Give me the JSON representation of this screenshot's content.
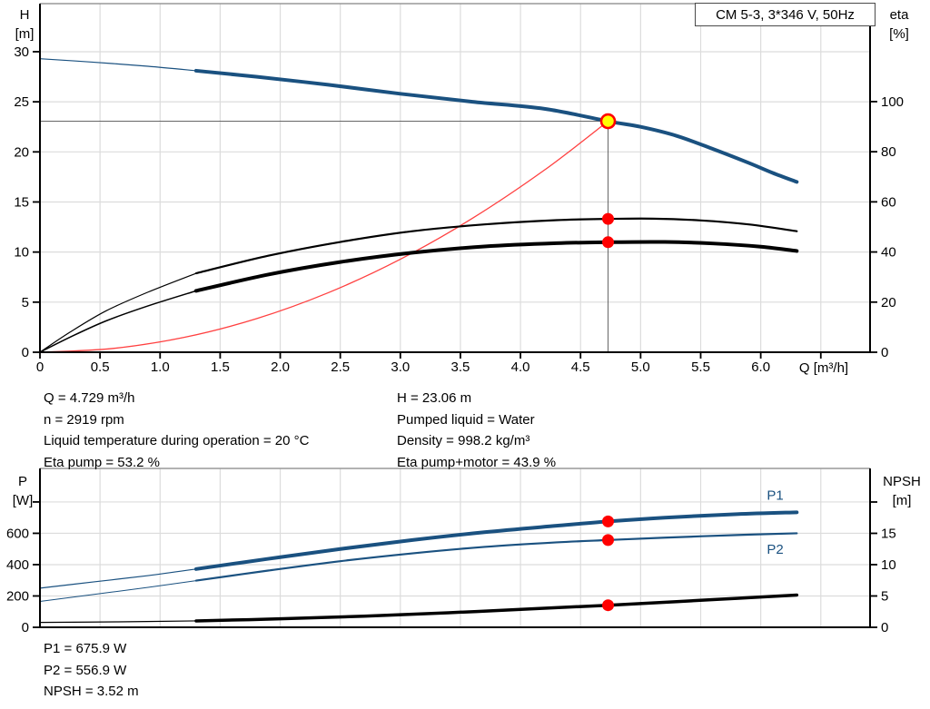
{
  "title_box": {
    "label": "CM 5-3, 3*346 V, 50Hz"
  },
  "colors": {
    "curve_blue": "#1A5180",
    "curve_black": "#000000",
    "curve_red": "#FF4040",
    "marker_red": "#FF0000",
    "duty_fill": "#FFFF00",
    "grid": "#DCDCDC",
    "frame": "#999999",
    "crosshair": "#666666",
    "axis": "#000000",
    "label_blue": "#1A5180"
  },
  "annotations": {
    "left": [
      "Q = 4.729 m³/h",
      "n = 2919 rpm",
      "Liquid temperature during operation = 20 °C",
      "Eta pump = 53.2 %"
    ],
    "right": [
      "H = 23.06 m",
      "Pumped liquid = Water",
      "Density = 998.2 kg/m³",
      "Eta pump+motor = 43.9 %"
    ],
    "bottom": [
      "P1 = 675.9 W",
      "P2 = 556.9 W",
      "NPSH = 3.52 m"
    ]
  },
  "chart_data": [
    {
      "id": "qh",
      "type": "line",
      "title": "Pump head and efficiency vs flow",
      "x_axis": {
        "label": "Q [m³/h]",
        "range": [
          0,
          6.91
        ],
        "tick_values": [
          0,
          0.5,
          1,
          1.5,
          2,
          2.5,
          3,
          3.5,
          4,
          4.5,
          5,
          5.5,
          6,
          6.5
        ],
        "tick_labels": [
          "0",
          "0.5",
          "1.0",
          "1.5",
          "2.0",
          "2.5",
          "3.0",
          "3.5",
          "4.0",
          "4.5",
          "5.0",
          "5.5",
          "6.0",
          ""
        ],
        "grid_values": [
          0.5,
          1,
          1.5,
          2,
          2.5,
          3,
          3.5,
          4,
          4.5,
          5,
          5.5,
          6,
          6.5
        ]
      },
      "left_axis": {
        "title": "H",
        "unit": "[m]",
        "range": [
          0,
          34.8
        ],
        "tick_values": [
          0,
          5,
          10,
          15,
          20,
          25,
          30
        ],
        "tick_labels": [
          "0",
          "5",
          "10",
          "15",
          "20",
          "25",
          "30"
        ]
      },
      "right_axis": {
        "title": "eta",
        "unit": "[%]",
        "range": [
          0,
          139.1
        ],
        "tick_values": [
          0,
          20,
          40,
          60,
          80,
          100
        ],
        "tick_labels": [
          "0",
          "20",
          "40",
          "60",
          "80",
          "100"
        ]
      },
      "crosshair": {
        "q": 4.729,
        "v": 23.06,
        "axis": "left"
      },
      "series": [
        {
          "id": "system-curve",
          "color": "red",
          "width": 1.3,
          "axis": "left",
          "points": [
            [
              0,
              0
            ],
            [
              0.6,
              0.37
            ],
            [
              1.2,
              1.48
            ],
            [
              1.8,
              3.34
            ],
            [
              2.4,
              5.94
            ],
            [
              3.0,
              9.28
            ],
            [
              3.6,
              13.37
            ],
            [
              4.2,
              18.19
            ],
            [
              4.729,
              23.06
            ]
          ]
        },
        {
          "id": "eta-pump-curve-lowflow",
          "color": "black",
          "width": 1.2,
          "axis": "right",
          "points": [
            [
              0,
              0
            ],
            [
              0.25,
              8
            ],
            [
              0.55,
              16.5
            ],
            [
              0.9,
              24
            ],
            [
              1.3,
              31.5
            ]
          ]
        },
        {
          "id": "eta-pump-curve",
          "color": "black",
          "width": 2.2,
          "axis": "right",
          "points": [
            [
              1.3,
              31.5
            ],
            [
              1.9,
              38.5
            ],
            [
              2.5,
              44
            ],
            [
              3.1,
              48.3
            ],
            [
              3.7,
              51
            ],
            [
              4.3,
              52.7
            ],
            [
              4.729,
              53.2
            ],
            [
              5.1,
              53.3
            ],
            [
              5.5,
              52.6
            ],
            [
              5.9,
              51
            ],
            [
              6.3,
              48.3
            ]
          ]
        },
        {
          "id": "eta-pump-motor-curve-lowflow",
          "color": "black",
          "width": 1.5,
          "axis": "right",
          "points": [
            [
              0,
              0
            ],
            [
              0.25,
              6
            ],
            [
              0.55,
              12.5
            ],
            [
              0.9,
              18.5
            ],
            [
              1.3,
              24.5
            ]
          ]
        },
        {
          "id": "eta-pump-motor-curve",
          "color": "black",
          "width": 4,
          "axis": "right",
          "points": [
            [
              1.3,
              24.5
            ],
            [
              1.9,
              31
            ],
            [
              2.5,
              36
            ],
            [
              3.1,
              39.7
            ],
            [
              3.7,
              42.2
            ],
            [
              4.3,
              43.5
            ],
            [
              4.729,
              43.9
            ],
            [
              5.2,
              44
            ],
            [
              5.6,
              43.4
            ],
            [
              6.0,
              42.1
            ],
            [
              6.3,
              40.4
            ]
          ]
        },
        {
          "id": "head-curve-lowflow",
          "color": "blue",
          "width": 1.2,
          "axis": "left",
          "points": [
            [
              0,
              29.3
            ],
            [
              0.45,
              28.95
            ],
            [
              0.9,
              28.55
            ],
            [
              1.3,
              28.1
            ]
          ]
        },
        {
          "id": "head-curve",
          "color": "blue",
          "width": 4,
          "axis": "left",
          "points": [
            [
              1.3,
              28.1
            ],
            [
              1.8,
              27.5
            ],
            [
              2.4,
              26.7
            ],
            [
              3.0,
              25.8
            ],
            [
              3.6,
              25.0
            ],
            [
              4.2,
              24.3
            ],
            [
              4.729,
              23.06
            ],
            [
              5.0,
              22.5
            ],
            [
              5.3,
              21.6
            ],
            [
              5.6,
              20.3
            ],
            [
              5.9,
              18.9
            ],
            [
              6.1,
              17.9
            ],
            [
              6.3,
              17.0
            ]
          ]
        }
      ],
      "markers": [
        {
          "id": "duty-point",
          "q": 4.729,
          "v": 23.06,
          "axis": "left",
          "style": "duty"
        },
        {
          "id": "eta-pump-point",
          "q": 4.729,
          "v": 53.2,
          "axis": "right",
          "style": "dot"
        },
        {
          "id": "eta-pump-motor-point",
          "q": 4.729,
          "v": 43.9,
          "axis": "right",
          "style": "dot"
        }
      ]
    },
    {
      "id": "power",
      "type": "line",
      "title": "Power and NPSH vs flow",
      "x_axis": {
        "label": "",
        "range": [
          0,
          6.91
        ],
        "tick_values": [],
        "tick_labels": [],
        "grid_values": [
          0.5,
          1,
          1.5,
          2,
          2.5,
          3,
          3.5,
          4,
          4.5,
          5,
          5.5,
          6,
          6.5
        ]
      },
      "left_axis": {
        "title": "P",
        "unit": "[W]",
        "range": [
          0,
          1014
        ],
        "tick_values": [
          0,
          200,
          400,
          600,
          800
        ],
        "tick_labels": [
          "0",
          "200",
          "400",
          "600",
          ""
        ]
      },
      "right_axis": {
        "title": "NPSH",
        "unit": "[m]",
        "range": [
          0,
          25.36
        ],
        "tick_values": [
          0,
          5,
          10,
          15,
          20
        ],
        "tick_labels": [
          "0",
          "5",
          "10",
          "15",
          ""
        ]
      },
      "series": [
        {
          "id": "npsh-curve-lowflow",
          "color": "black",
          "width": 1.2,
          "axis": "right",
          "points": [
            [
              0,
              0.78
            ],
            [
              0.65,
              0.87
            ],
            [
              1.3,
              1.02
            ]
          ]
        },
        {
          "id": "npsh-curve",
          "color": "black",
          "width": 3.5,
          "axis": "right",
          "points": [
            [
              1.3,
              1.02
            ],
            [
              2.0,
              1.35
            ],
            [
              2.7,
              1.78
            ],
            [
              3.4,
              2.32
            ],
            [
              4.1,
              2.95
            ],
            [
              4.729,
              3.52
            ],
            [
              5.3,
              4.1
            ],
            [
              5.8,
              4.62
            ],
            [
              6.3,
              5.15
            ]
          ]
        },
        {
          "id": "p2-curve-lowflow",
          "color": "blue",
          "width": 1,
          "axis": "left",
          "points": [
            [
              0,
              165
            ],
            [
              0.45,
              210
            ],
            [
              0.9,
              255
            ],
            [
              1.3,
              298
            ]
          ]
        },
        {
          "id": "p2-curve",
          "color": "blue",
          "width": 2.2,
          "axis": "left",
          "points": [
            [
              1.3,
              298
            ],
            [
              1.9,
              362
            ],
            [
              2.5,
              422
            ],
            [
              3.1,
              472
            ],
            [
              3.7,
              513
            ],
            [
              4.3,
              542
            ],
            [
              4.729,
              556.9
            ],
            [
              5.2,
              572
            ],
            [
              5.8,
              589
            ],
            [
              6.3,
              600
            ]
          ],
          "label": {
            "text": "P2",
            "q": 6.12,
            "v": 468
          }
        },
        {
          "id": "p1-curve-lowflow",
          "color": "blue",
          "width": 1.2,
          "axis": "left",
          "points": [
            [
              0,
              250
            ],
            [
              0.45,
              290
            ],
            [
              0.9,
              330
            ],
            [
              1.3,
              372
            ]
          ]
        },
        {
          "id": "p1-curve",
          "color": "blue",
          "width": 4,
          "axis": "left",
          "points": [
            [
              1.3,
              372
            ],
            [
              1.9,
              437
            ],
            [
              2.5,
              500
            ],
            [
              3.1,
              557
            ],
            [
              3.7,
              607
            ],
            [
              4.3,
              648
            ],
            [
              4.729,
              675.9
            ],
            [
              5.2,
              700
            ],
            [
              5.8,
              722
            ],
            [
              6.3,
              734
            ]
          ],
          "label": {
            "text": "P1",
            "q": 6.12,
            "v": 815
          }
        }
      ],
      "markers": [
        {
          "id": "p1-point",
          "q": 4.729,
          "v": 675.9,
          "axis": "left",
          "style": "dot"
        },
        {
          "id": "p2-point",
          "q": 4.729,
          "v": 556.9,
          "axis": "left",
          "style": "dot"
        },
        {
          "id": "npsh-point",
          "q": 4.729,
          "v": 3.52,
          "axis": "right",
          "style": "dot"
        }
      ]
    }
  ]
}
